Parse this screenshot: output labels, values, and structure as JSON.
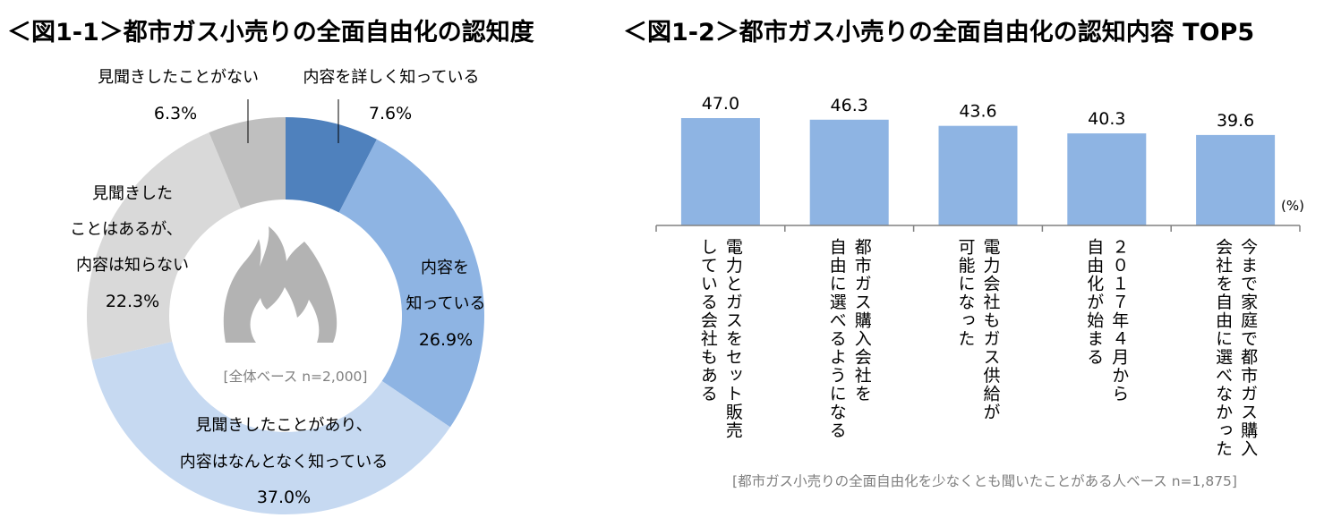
{
  "titles": {
    "fig1": "＜図1-1＞都市ガス小売りの全面自由化の認知度",
    "fig2": "＜図1-2＞都市ガス小売りの全面自由化の認知内容 TOP5"
  },
  "colors": {
    "slice_detailed": "#4F81BD",
    "slice_know": "#8EB4E3",
    "slice_vaguely": "#C6D9F1",
    "slice_heard_only": "#D9D9D9",
    "slice_never": "#BFBFBF",
    "bar": "#8EB4E3",
    "axis": "#808080",
    "flame": "#B3B3B3",
    "base_text": "#808080"
  },
  "chart_data": [
    {
      "type": "pie",
      "variant": "donut",
      "title": "＜図1-1＞都市ガス小売りの全面自由化の認知度",
      "start": "top",
      "direction": "clockwise",
      "center_icon": "flame-icon",
      "base_note": "[全体ベース n=2,000]",
      "slices": [
        {
          "key": "detailed",
          "label_lines": [
            "内容を詳しく知っている"
          ],
          "value": 7.6,
          "value_label": "7.6%"
        },
        {
          "key": "know",
          "label_lines": [
            "内容を",
            "知っている"
          ],
          "value": 26.9,
          "value_label": "26.9%"
        },
        {
          "key": "vaguely",
          "label_lines": [
            "見聞きしたことがあり、",
            "内容はなんとなく知っている"
          ],
          "value": 37.0,
          "value_label": "37.0%"
        },
        {
          "key": "heard_only",
          "label_lines": [
            "見聞きした",
            "ことはあるが、",
            "内容は知らない"
          ],
          "value": 22.3,
          "value_label": "22.3%"
        },
        {
          "key": "never",
          "label_lines": [
            "見聞きしたことがない"
          ],
          "value": 6.3,
          "value_label": "6.3%"
        }
      ]
    },
    {
      "type": "bar",
      "title": "＜図1-2＞都市ガス小売りの全面自由化の認知内容 TOP5",
      "unit_label": "(%)",
      "base_note": "[都市ガス小売りの全面自由化を少なくとも聞いたことがある人ベース n=1,875]",
      "categories": [
        "電力とガスをセット販売\nしている会社もある",
        "都市ガス購入会社を\n自由に選べるようになる",
        "電力会社もガス供給が\n可能になった",
        "２０１７年４月から\n自由化が始まる",
        "今まで家庭で都市ガス購入\n会社を自由に選べなかった"
      ],
      "values": [
        47.0,
        46.3,
        43.6,
        40.3,
        39.6
      ],
      "value_labels": [
        "47.0",
        "46.3",
        "43.6",
        "40.3",
        "39.6"
      ],
      "ylim": [
        0,
        50
      ]
    }
  ]
}
